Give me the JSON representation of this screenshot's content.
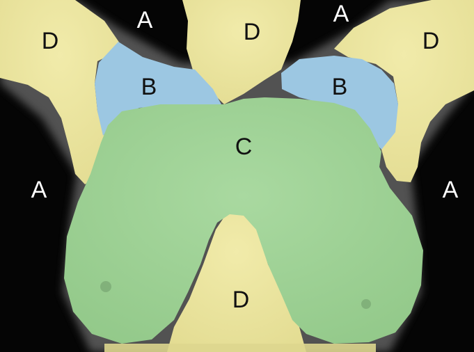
{
  "image": {
    "kind": "segmentation-overlay",
    "background_color": "#050505"
  },
  "regions": [
    {
      "id": "A",
      "label": "A",
      "fill": "#000000"
    },
    {
      "id": "B",
      "label": "B",
      "fill": "#9cc7e2"
    },
    {
      "id": "C",
      "label": "C",
      "fill": "#a3d49a"
    },
    {
      "id": "D",
      "label": "D",
      "fill": "#ece69e"
    }
  ],
  "labels": {
    "a_top_left": "A",
    "a_top_right": "A",
    "a_mid_left": "A",
    "a_mid_right": "A",
    "b_left": "B",
    "b_right": "B",
    "c_center": "C",
    "d_top_left": "D",
    "d_top_center": "D",
    "d_top_right": "D",
    "d_bottom_center": "D"
  }
}
